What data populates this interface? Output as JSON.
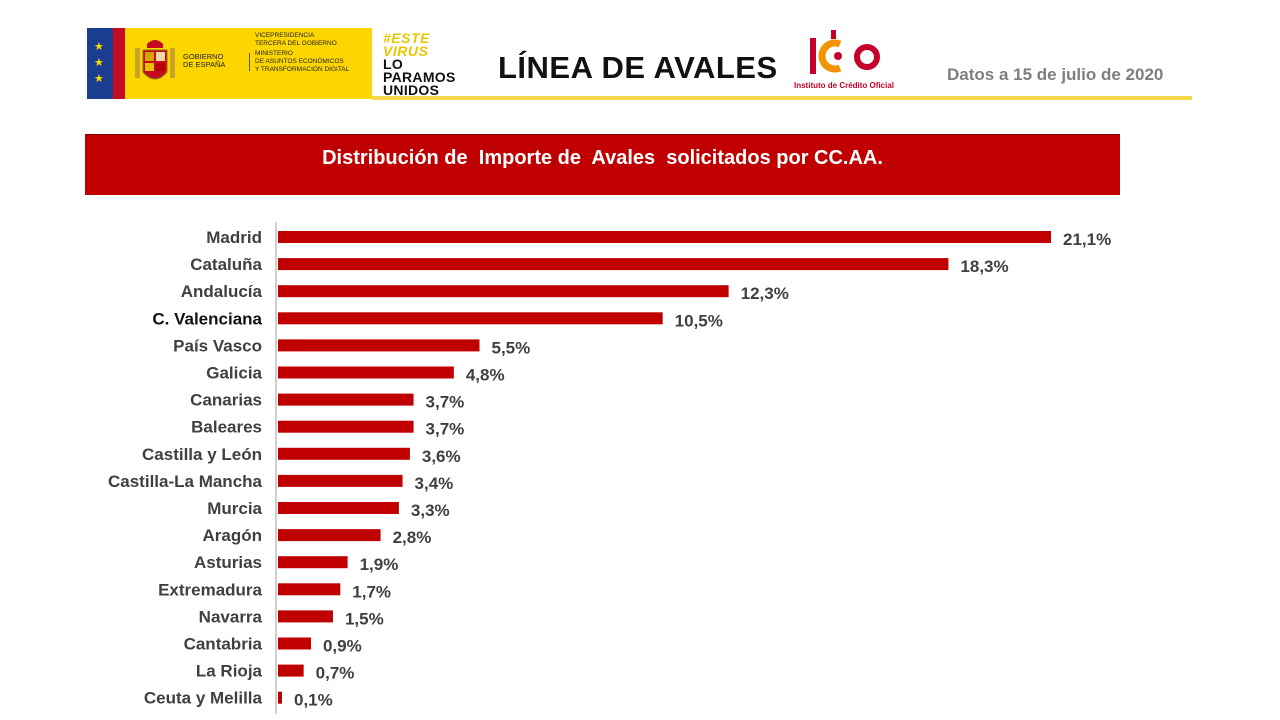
{
  "header": {
    "gov_line1": "Gobierno",
    "gov_line2": "de España",
    "gov_vice1": "Vicepresidencia",
    "gov_vice2": "Tercera del Gobierno",
    "gov_min1": "Ministerio",
    "gov_min2": "de Asuntos Económicos",
    "gov_min3": "y Transformación Digital",
    "virus_1": "#ESTE",
    "virus_2": "VIRUS",
    "virus_3": "LO",
    "virus_4": "PARAMOS",
    "virus_5": "UNIDOS",
    "title": "LÍNEA DE AVALES",
    "ico_caption": "Instituto de Crédito Oficial",
    "date": "Datos a 15 de julio de 2020"
  },
  "colors": {
    "bar": "#c00000",
    "banner": "#c00000",
    "gov_yellow": "#fdd600",
    "axis": "#bfbfbf",
    "label": "#404040"
  },
  "chart_data": {
    "type": "bar",
    "orientation": "horizontal",
    "title": "Distribución de  Importe de  Avales  solicitados por CC.AA.",
    "categories": [
      "Madrid",
      "Cataluña",
      "Andalucía",
      "C. Valenciana",
      "País Vasco",
      "Galicia",
      "Canarias",
      "Baleares",
      "Castilla y León",
      "Castilla-La Mancha",
      "Murcia",
      "Aragón",
      "Asturias",
      "Extremadura",
      "Navarra",
      "Cantabria",
      "La Rioja",
      "Ceuta y Melilla"
    ],
    "values": [
      21.1,
      18.3,
      12.3,
      10.5,
      5.5,
      4.8,
      3.7,
      3.7,
      3.6,
      3.4,
      3.3,
      2.8,
      1.9,
      1.7,
      1.5,
      0.9,
      0.7,
      0.1
    ],
    "labels": [
      "21,1%",
      "18,3%",
      "12,3%",
      "10,5%",
      "5,5%",
      "4,8%",
      "3,7%",
      "3,7%",
      "3,6%",
      "3,4%",
      "3,3%",
      "2,8%",
      "1,9%",
      "1,7%",
      "1,5%",
      "0,9%",
      "0,7%",
      "0,1%"
    ],
    "unit": "%",
    "xlim": [
      0,
      21.1
    ],
    "legend": "none",
    "grid": false
  }
}
